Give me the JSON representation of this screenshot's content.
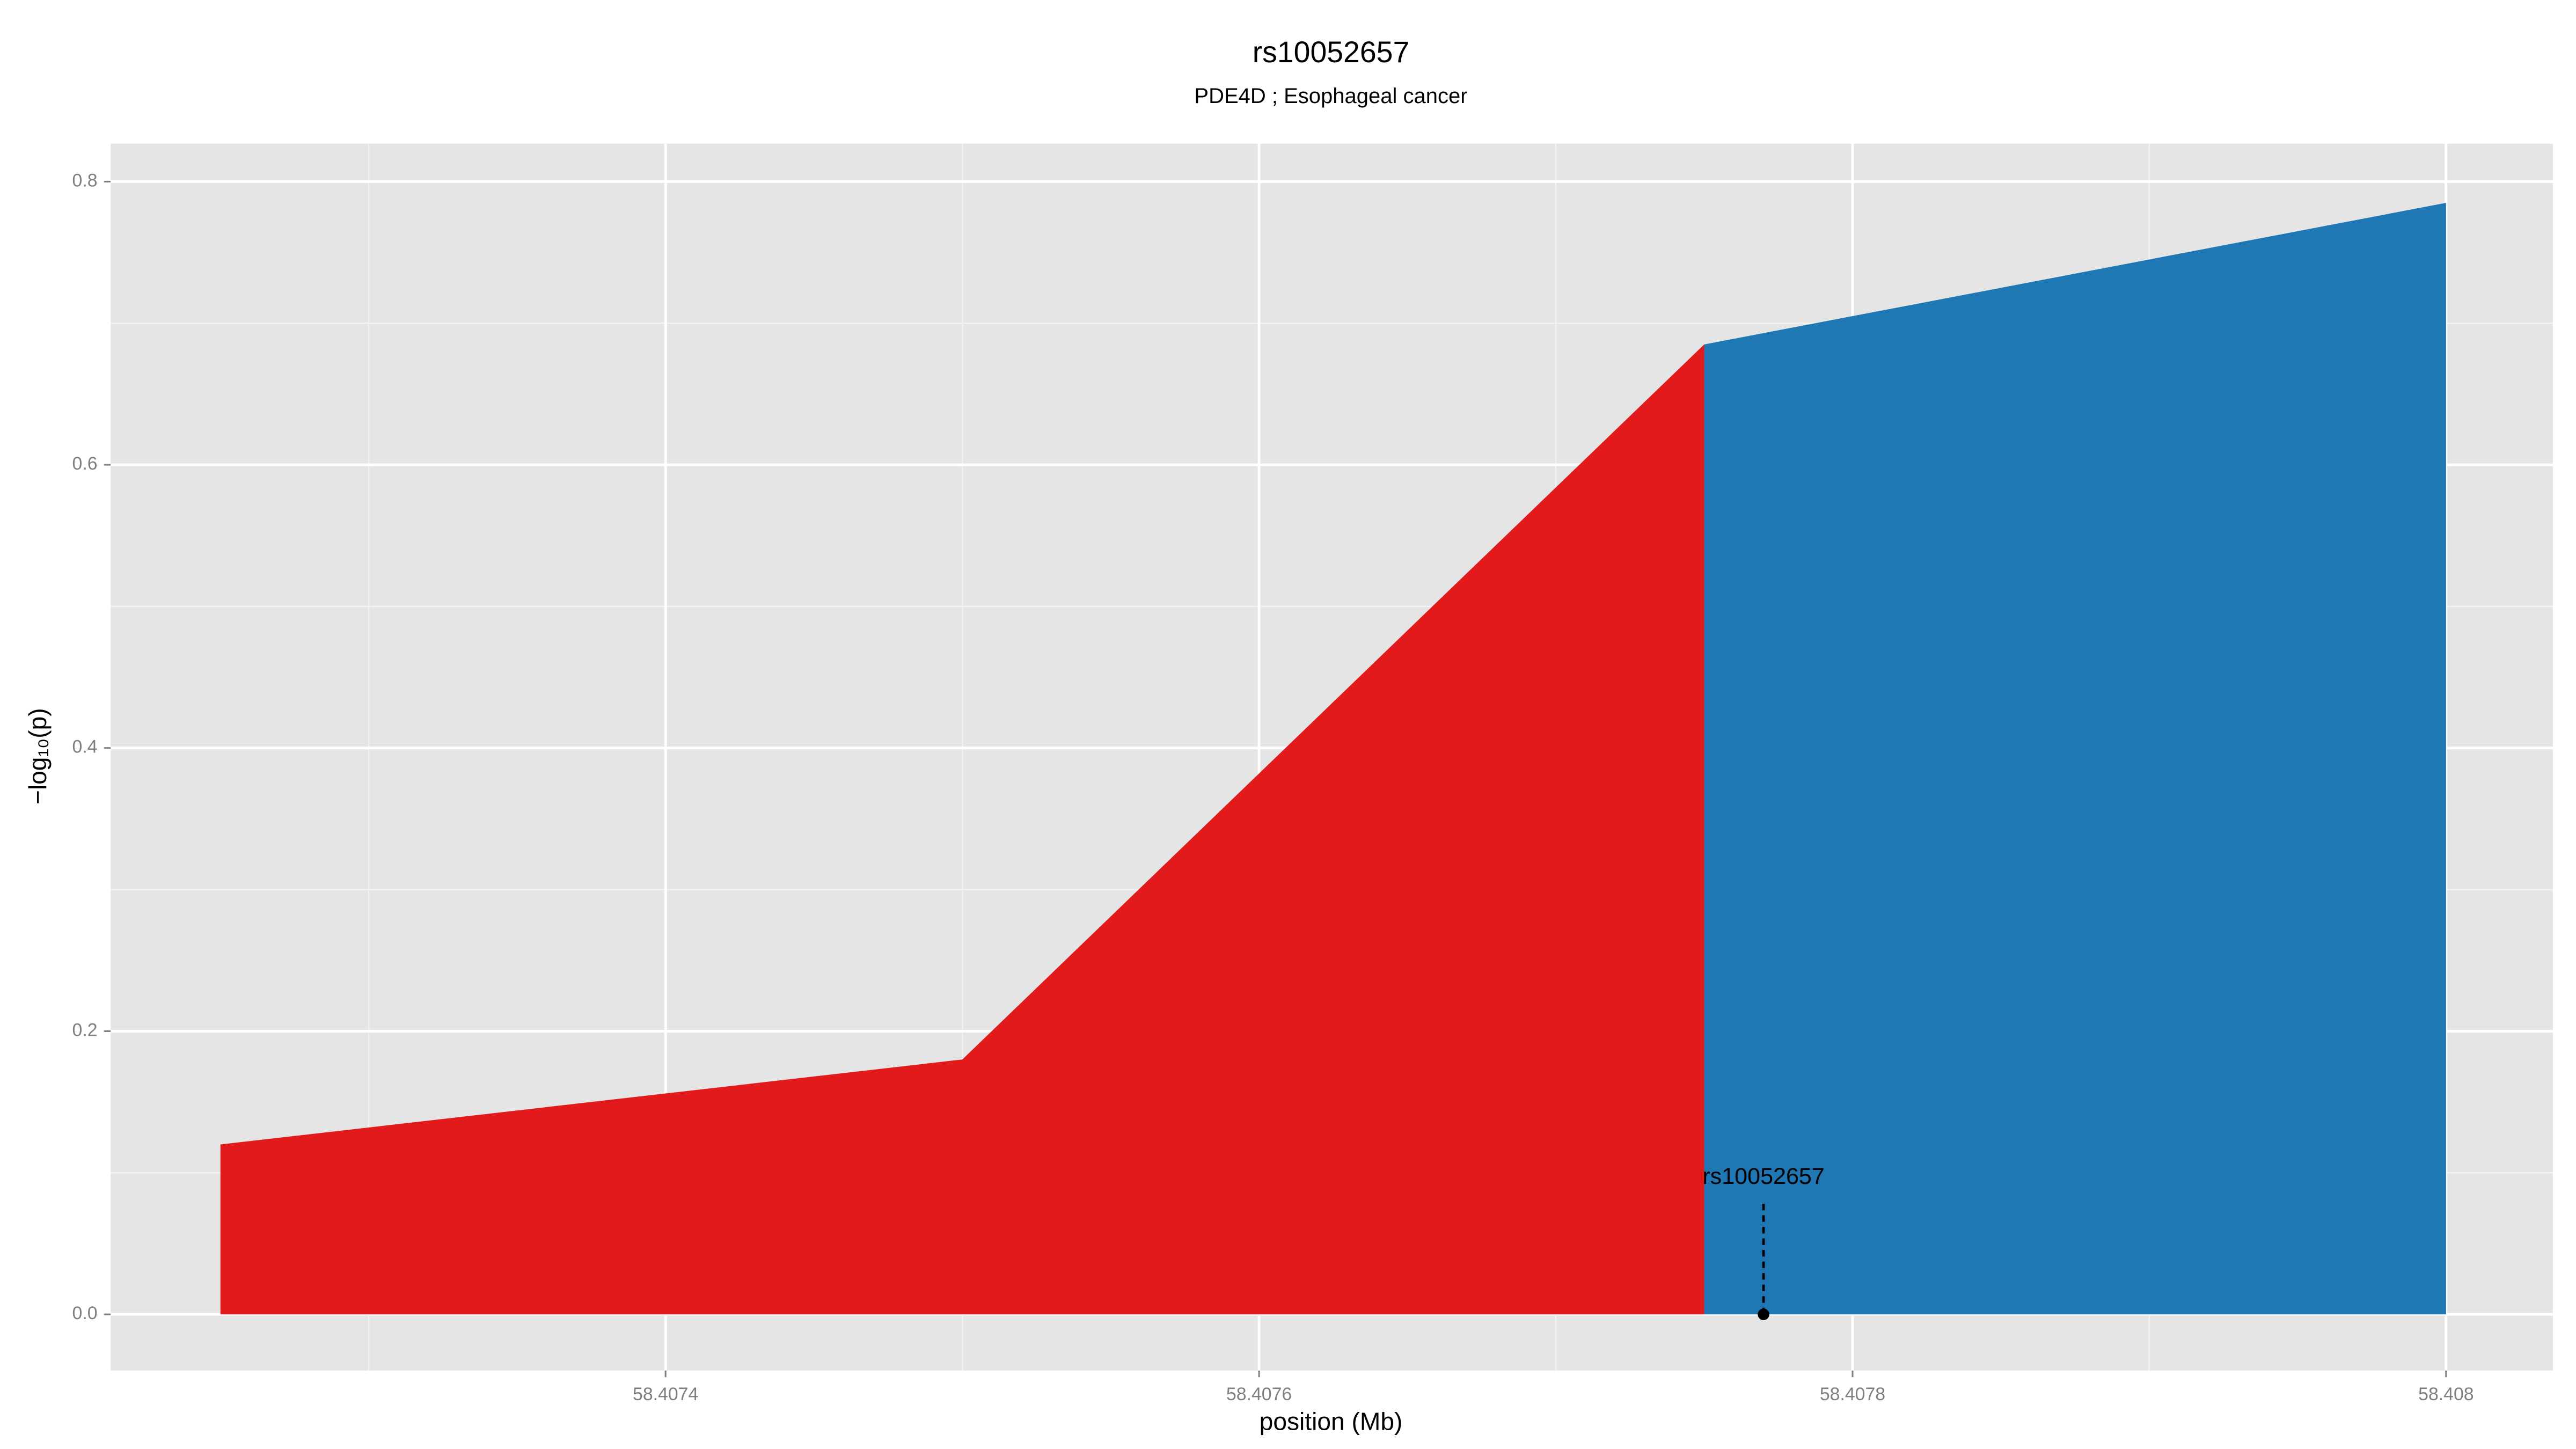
{
  "chart_data": {
    "type": "area",
    "title": "rs10052657",
    "subtitle": "PDE4D ; Esophageal cancer",
    "xlabel": "position (Mb)",
    "ylabel": "−log₁₀(p)",
    "series": [
      {
        "color": "#e31a1c",
        "x": [
          58.40725,
          58.4075,
          58.40775
        ],
        "values": [
          0.12,
          0.18,
          0.685
        ]
      },
      {
        "color": "#1f78b4",
        "x": [
          58.40775,
          58.408
        ],
        "values": [
          0.685,
          0.785
        ]
      }
    ],
    "xlim": [
      58.407213,
      58.408036
    ],
    "ylim": [
      -0.0397,
      0.8268
    ],
    "xticks": [
      58.4074,
      58.4076,
      58.4078,
      58.408
    ],
    "yticks": [
      {
        "value": 0,
        "label": "0.0"
      },
      0.2,
      0.4,
      0.6,
      0.8
    ],
    "x_minor_grid": [
      58.4073,
      58.4075,
      58.4077,
      58.4079
    ],
    "y_minor_grid": [
      0.1,
      0.3,
      0.5,
      0.7
    ],
    "grid": true,
    "annotation": {
      "text": "rs10052657",
      "x": 58.40777,
      "y": 0,
      "line_top": 0.079
    }
  }
}
